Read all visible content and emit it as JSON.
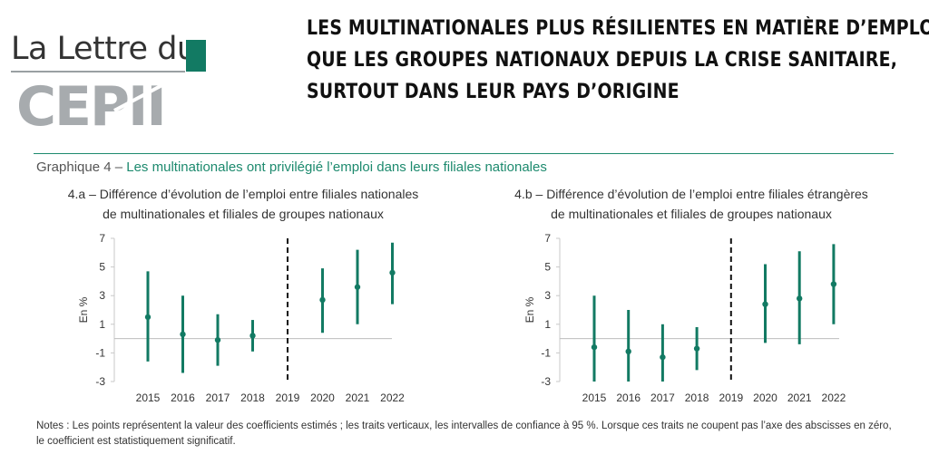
{
  "logo": {
    "line1": "La Lettre du",
    "line2": "CEPII",
    "accent_color": "#127a63"
  },
  "headline": [
    "LES MULTINATIONALES PLUS RÉSILIENTES EN MATIÈRE D’EMPLOI",
    "QUE LES GROUPES NATIONAUX DEPUIS LA CRISE SANITAIRE,",
    "SURTOUT DANS LEUR PAYS D’ORIGINE"
  ],
  "graph_title": {
    "prefix": "Graphique 4 – ",
    "text": "Les multinationales ont privilégié l’emploi dans leurs filiales nationales"
  },
  "notes": "Notes : Les points représentent la valeur des coefficients estimés ; les traits verticaux, les intervalles de confiance à 95 %. Lorsque ces traits ne coupent pas l’axe des abscisses en zéro, le coefficient est statistiquement significatif.",
  "chart_data": [
    {
      "type": "scatter",
      "subtitle_line1": "4.a – Différence d’évolution de l’emploi entre filiales nationales",
      "subtitle_line2": "de multinationales et filiales de groupes nationaux",
      "ylabel": "En %",
      "ylim": [
        -3,
        7
      ],
      "yticks": [
        "7",
        "5",
        "3",
        "1",
        "-1",
        "-3"
      ],
      "categories": [
        "2015",
        "2016",
        "2017",
        "2018",
        "2019",
        "2020",
        "2021",
        "2022"
      ],
      "values": [
        1.5,
        0.3,
        -0.1,
        0.2,
        null,
        2.7,
        3.6,
        4.6
      ],
      "ci_low": [
        -1.6,
        -2.4,
        -1.9,
        -0.9,
        null,
        0.4,
        1.0,
        2.4
      ],
      "ci_high": [
        4.7,
        3.0,
        1.7,
        1.3,
        null,
        4.9,
        6.2,
        6.7
      ],
      "reference_line": "2019",
      "color": "#127a63"
    },
    {
      "type": "scatter",
      "subtitle_line1": "4.b – Différence d’évolution de l’emploi entre filiales étrangères",
      "subtitle_line2": "de multinationales et filiales de groupes nationaux",
      "ylabel": "En %",
      "ylim": [
        -3,
        7
      ],
      "yticks": [
        "7",
        "5",
        "3",
        "1",
        "-1",
        "-3"
      ],
      "categories": [
        "2015",
        "2016",
        "2017",
        "2018",
        "2019",
        "2020",
        "2021",
        "2022"
      ],
      "values": [
        -0.6,
        -0.9,
        -1.3,
        -0.7,
        null,
        2.4,
        2.8,
        3.8
      ],
      "ci_low": [
        -3.0,
        -3.0,
        -3.0,
        -2.2,
        null,
        -0.3,
        -0.4,
        1.0
      ],
      "ci_high": [
        3.0,
        2.0,
        1.0,
        0.8,
        null,
        5.2,
        6.1,
        6.6
      ],
      "reference_line": "2019",
      "color": "#127a63"
    }
  ]
}
